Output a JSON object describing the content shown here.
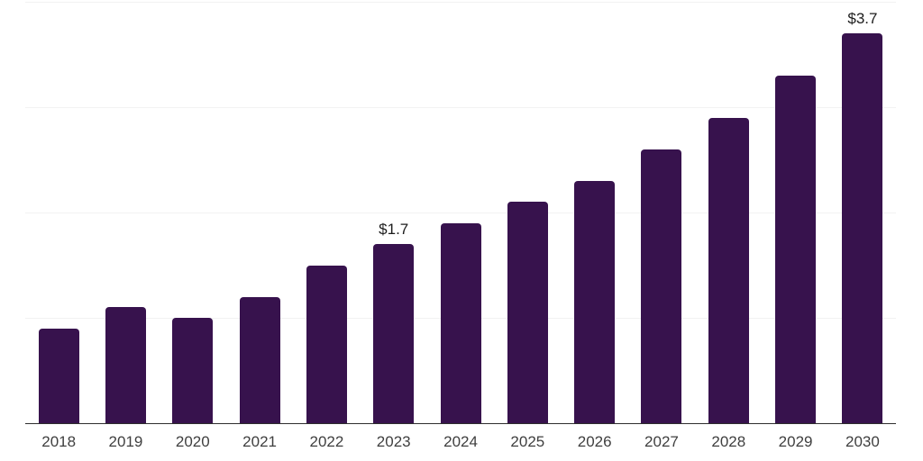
{
  "chart_data": {
    "type": "bar",
    "categories": [
      "2018",
      "2019",
      "2020",
      "2021",
      "2022",
      "2023",
      "2024",
      "2025",
      "2026",
      "2027",
      "2028",
      "2029",
      "2030"
    ],
    "values": [
      0.9,
      1.1,
      1.0,
      1.2,
      1.5,
      1.7,
      1.9,
      2.1,
      2.3,
      2.6,
      2.9,
      3.3,
      3.7
    ],
    "value_labels": {
      "2023": "$1.7",
      "2030": "$3.7"
    },
    "title": "",
    "xlabel": "",
    "ylabel": "",
    "ylim": [
      0,
      4
    ],
    "gridline_values": [
      1,
      2,
      3,
      4
    ],
    "grid": "horizontal",
    "legend": "none",
    "colors": {
      "bar": "#37124d",
      "gridline": "#f2f2f2",
      "axis_line": "#2e2e2e",
      "x_label_text": "#3f3f3f",
      "value_label_text": "#1c1c1c",
      "background": "#ffffff"
    }
  }
}
